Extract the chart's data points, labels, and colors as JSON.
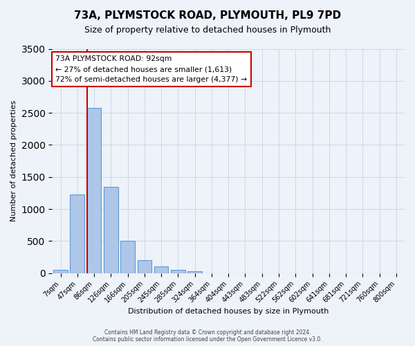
{
  "title": "73A, PLYMSTOCK ROAD, PLYMOUTH, PL9 7PD",
  "subtitle": "Size of property relative to detached houses in Plymouth",
  "xlabel": "Distribution of detached houses by size in Plymouth",
  "ylabel": "Number of detached properties",
  "footer_line1": "Contains HM Land Registry data © Crown copyright and database right 2024.",
  "footer_line2": "Contains public sector information licensed under the Open Government Licence v3.0.",
  "bar_labels": [
    "7sqm",
    "47sqm",
    "86sqm",
    "126sqm",
    "166sqm",
    "205sqm",
    "245sqm",
    "285sqm",
    "324sqm",
    "364sqm",
    "404sqm",
    "443sqm",
    "483sqm",
    "522sqm",
    "562sqm",
    "602sqm",
    "641sqm",
    "681sqm",
    "721sqm",
    "760sqm",
    "800sqm"
  ],
  "bar_values": [
    50,
    1230,
    2580,
    1350,
    500,
    200,
    110,
    55,
    30,
    0,
    0,
    0,
    0,
    0,
    0,
    0,
    0,
    0,
    0,
    0,
    0
  ],
  "bar_color": "#aec6e8",
  "bar_edge_color": "#5b9bd5",
  "ylim": [
    0,
    3500
  ],
  "yticks": [
    0,
    500,
    1000,
    1500,
    2000,
    2500,
    3000,
    3500
  ],
  "property_line_color": "#cc0000",
  "annotation_text_line1": "73A PLYMSTOCK ROAD: 92sqm",
  "annotation_text_line2": "← 27% of detached houses are smaller (1,613)",
  "annotation_text_line3": "72% of semi-detached houses are larger (4,377) →",
  "annotation_box_color": "#ffffff",
  "annotation_box_edge_color": "#cc0000",
  "background_color": "#eef2f9"
}
